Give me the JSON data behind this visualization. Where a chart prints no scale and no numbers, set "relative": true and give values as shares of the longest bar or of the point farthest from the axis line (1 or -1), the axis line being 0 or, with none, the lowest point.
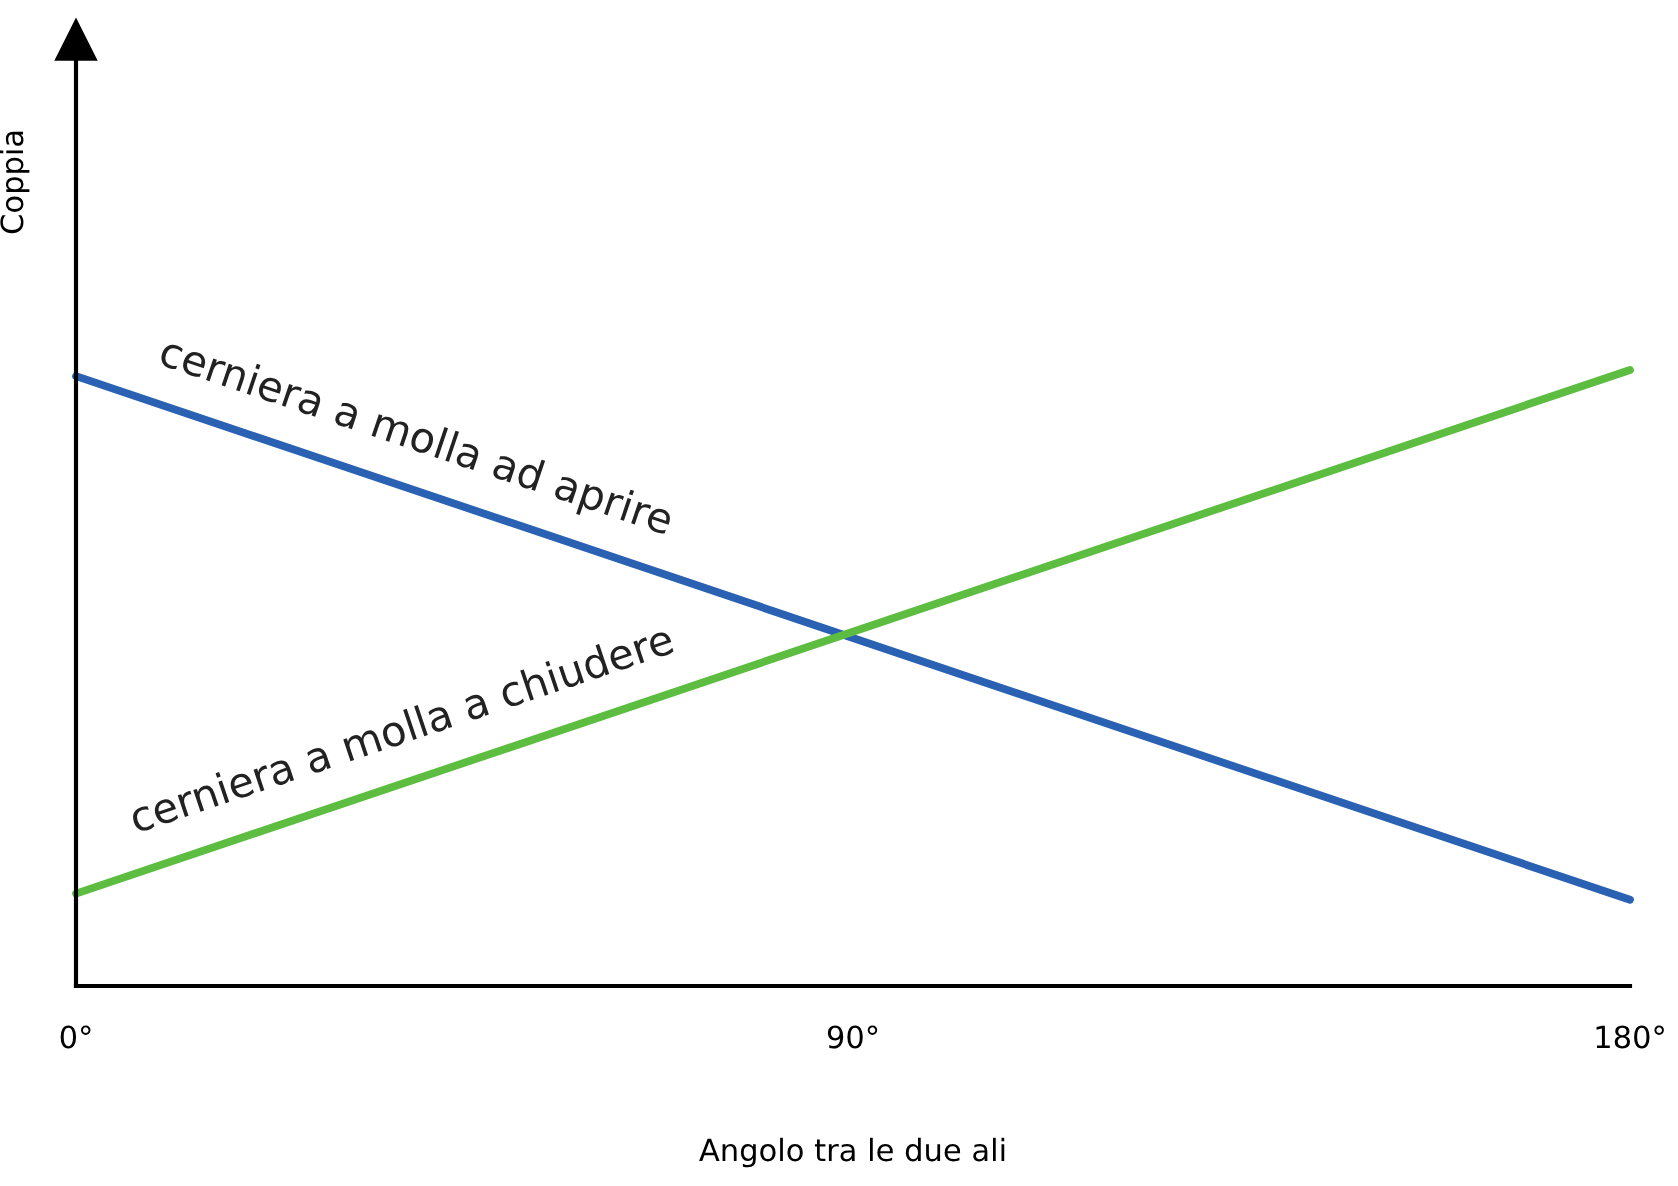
{
  "chart_data": {
    "type": "line",
    "xlabel": "Angolo tra le due ali",
    "ylabel": "Coppia",
    "relative": true,
    "x": [
      0,
      180
    ],
    "xlim": [
      0,
      180
    ],
    "xticks": [
      {
        "value": 0,
        "label": "0°"
      },
      {
        "value": 90,
        "label": "90°"
      },
      {
        "value": 180,
        "label": "180°"
      }
    ],
    "series": [
      {
        "name": "cerniera a molla ad aprire",
        "color": "#2b61b2",
        "values": [
          0.99,
          0.14
        ]
      },
      {
        "name": "cerniera a molla a chiudere",
        "color": "#5cbd41",
        "values": [
          0.15,
          1
        ]
      }
    ],
    "grid": false,
    "legend": false
  }
}
